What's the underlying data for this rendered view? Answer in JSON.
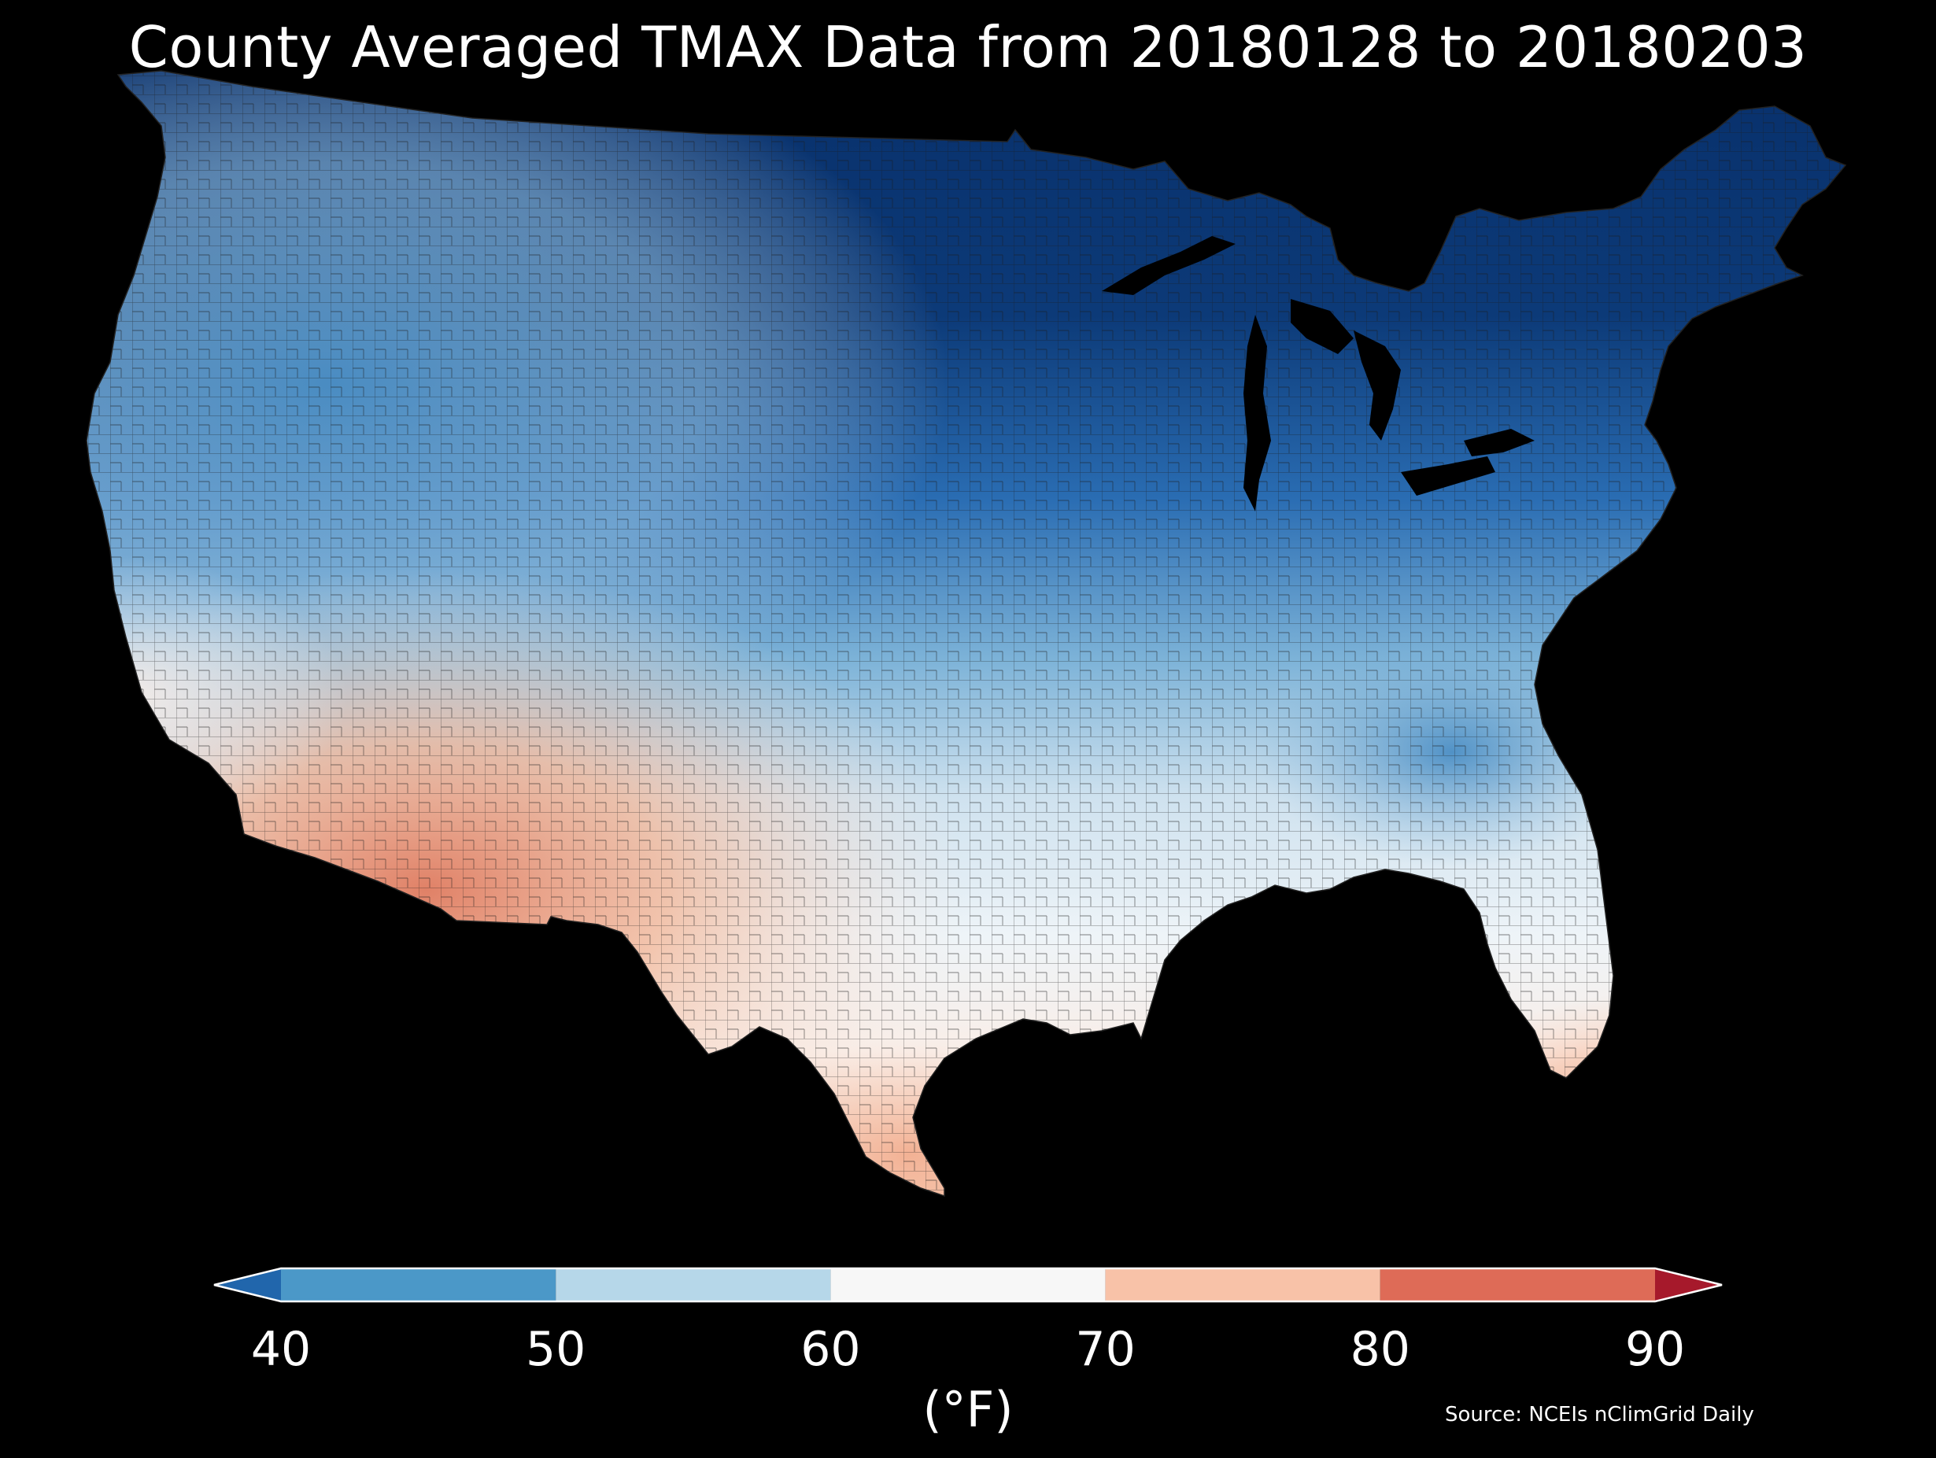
{
  "title": "County Averaged TMAX Data from 20180128 to 20180203",
  "colorbar": {
    "ticks": [
      "40",
      "50",
      "60",
      "70",
      "80",
      "90"
    ],
    "unit": "(°F)",
    "bins": [
      {
        "from": 40,
        "to": 50,
        "color": "#4b98c8"
      },
      {
        "from": 50,
        "to": 60,
        "color": "#b6d7e9"
      },
      {
        "from": 60,
        "to": 70,
        "color": "#f7f7f7"
      },
      {
        "from": 70,
        "to": 80,
        "color": "#f8c2a8"
      },
      {
        "from": 80,
        "to": 90,
        "color": "#de6b57"
      }
    ],
    "under_color": "#2166ac",
    "over_color": "#a6192b"
  },
  "source": "Source: NCEIs nClimGrid Daily",
  "colors": {
    "background": "#000000",
    "coldest": "#08306b",
    "cold": "#2166ac",
    "cool": "#6baed6",
    "mild": "#d9e8f3",
    "neutral": "#f5f5f5",
    "warm": "#f4b595",
    "warmest": "#e07b5f"
  }
}
